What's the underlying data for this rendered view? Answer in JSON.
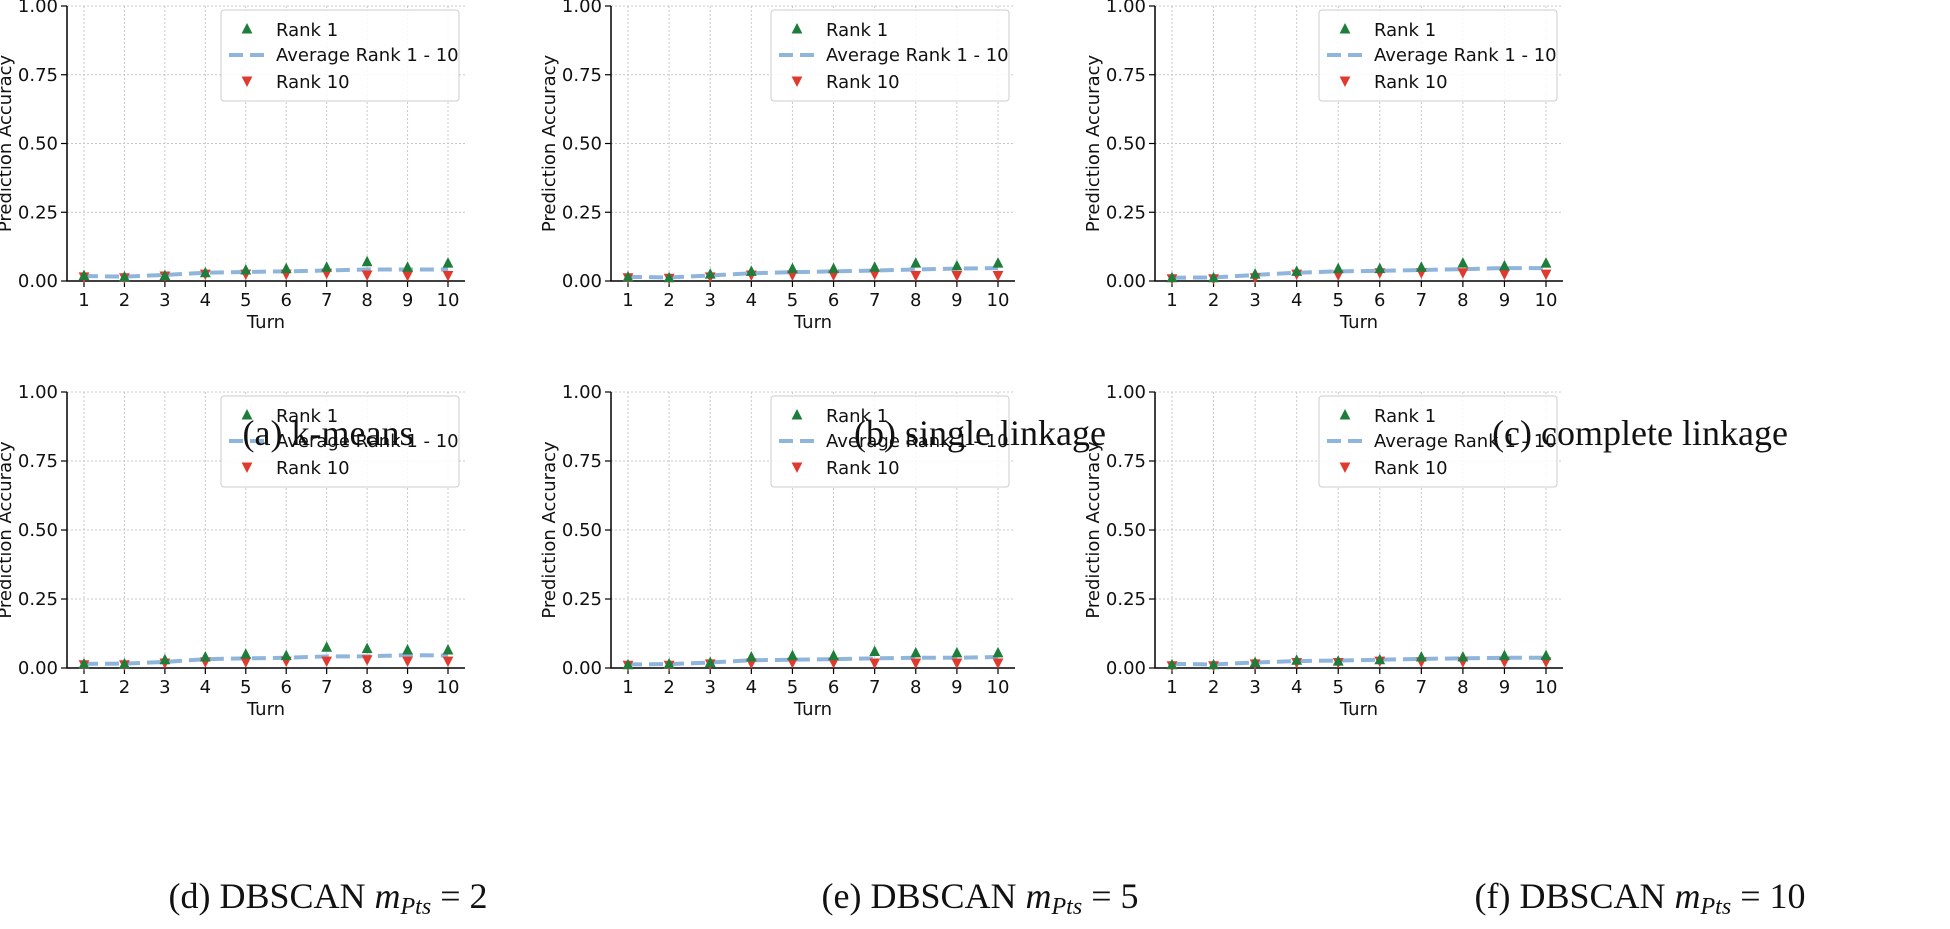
{
  "colors": {
    "rank1": "#1f7d3c",
    "average": "#8fb5dd",
    "rank10": "#e03a2f",
    "grid": "#c8c8c8",
    "axis": "#000000"
  },
  "legend": {
    "rank1": "Rank 1",
    "average": "Average Rank 1 - 10",
    "rank10": "Rank 10"
  },
  "captions": [
    {
      "label": "(a)",
      "text": "k-means"
    },
    {
      "label": "(b)",
      "text": "single linkage"
    },
    {
      "label": "(c)",
      "text": "complete linkage"
    },
    {
      "label": "(d)",
      "text": "DBSCAN",
      "math_var": "m",
      "math_sub": "Pts",
      "math_rel": "= 2"
    },
    {
      "label": "(e)",
      "text": "DBSCAN",
      "math_var": "m",
      "math_sub": "Pts",
      "math_rel": "= 5"
    },
    {
      "label": "(f)",
      "text": "DBSCAN",
      "math_var": "m",
      "math_sub": "Pts",
      "math_rel": "= 10"
    }
  ],
  "chart_data": [
    {
      "type": "line",
      "xlabel": "Turn",
      "ylabel": "Prediction Accuracy",
      "x": [
        1,
        2,
        3,
        4,
        5,
        6,
        7,
        8,
        9,
        10
      ],
      "ylim": [
        0,
        1.0
      ],
      "yticks": [
        "0.00",
        "0.25",
        "0.50",
        "0.75",
        "1.00"
      ],
      "grid": true,
      "legend_position": "top-right",
      "series": [
        {
          "name": "Rank 1",
          "marker": "triangle-up",
          "values": [
            0.02,
            0.015,
            0.02,
            0.03,
            0.04,
            0.045,
            0.05,
            0.07,
            0.05,
            0.065
          ]
        },
        {
          "name": "Average Rank 1 - 10",
          "style": "dashed",
          "values": [
            0.018,
            0.016,
            0.022,
            0.03,
            0.033,
            0.035,
            0.038,
            0.042,
            0.042,
            0.042
          ]
        },
        {
          "name": "Rank 10",
          "marker": "triangle-down",
          "values": [
            0.015,
            0.012,
            0.018,
            0.025,
            0.025,
            0.025,
            0.028,
            0.022,
            0.02,
            0.02
          ]
        }
      ]
    },
    {
      "type": "line",
      "xlabel": "Turn",
      "ylabel": "Prediction Accuracy",
      "x": [
        1,
        2,
        3,
        4,
        5,
        6,
        7,
        8,
        9,
        10
      ],
      "ylim": [
        0,
        1.0
      ],
      "yticks": [
        "0.00",
        "0.25",
        "0.50",
        "0.75",
        "1.00"
      ],
      "grid": true,
      "legend_position": "top-right",
      "series": [
        {
          "name": "Rank 1",
          "marker": "triangle-up",
          "values": [
            0.015,
            0.012,
            0.025,
            0.035,
            0.045,
            0.045,
            0.05,
            0.065,
            0.055,
            0.065
          ]
        },
        {
          "name": "Average Rank 1 - 10",
          "style": "dashed",
          "values": [
            0.015,
            0.013,
            0.02,
            0.028,
            0.032,
            0.035,
            0.038,
            0.042,
            0.045,
            0.047
          ]
        },
        {
          "name": "Rank 10",
          "marker": "triangle-down",
          "values": [
            0.012,
            0.01,
            0.015,
            0.022,
            0.022,
            0.022,
            0.025,
            0.02,
            0.02,
            0.02
          ]
        }
      ]
    },
    {
      "type": "line",
      "xlabel": "Turn",
      "ylabel": "Prediction Accuracy",
      "x": [
        1,
        2,
        3,
        4,
        5,
        6,
        7,
        8,
        9,
        10
      ],
      "ylim": [
        0,
        1.0
      ],
      "yticks": [
        "0.00",
        "0.25",
        "0.50",
        "0.75",
        "1.00"
      ],
      "grid": true,
      "legend_position": "top-right",
      "series": [
        {
          "name": "Rank 1",
          "marker": "triangle-up",
          "values": [
            0.012,
            0.012,
            0.025,
            0.035,
            0.045,
            0.045,
            0.05,
            0.065,
            0.055,
            0.065
          ]
        },
        {
          "name": "Average Rank 1 - 10",
          "style": "dashed",
          "values": [
            0.012,
            0.013,
            0.022,
            0.03,
            0.035,
            0.037,
            0.04,
            0.043,
            0.047,
            0.047
          ]
        },
        {
          "name": "Rank 10",
          "marker": "triangle-down",
          "values": [
            0.008,
            0.008,
            0.012,
            0.025,
            0.022,
            0.03,
            0.03,
            0.03,
            0.025,
            0.025
          ]
        }
      ]
    },
    {
      "type": "line",
      "xlabel": "Turn",
      "ylabel": "Prediction Accuracy",
      "x": [
        1,
        2,
        3,
        4,
        5,
        6,
        7,
        8,
        9,
        10
      ],
      "ylim": [
        0,
        1.0
      ],
      "yticks": [
        "0.00",
        "0.25",
        "0.50",
        "0.75",
        "1.00"
      ],
      "grid": true,
      "legend_position": "top-right",
      "series": [
        {
          "name": "Rank 1",
          "marker": "triangle-up",
          "values": [
            0.015,
            0.015,
            0.03,
            0.04,
            0.05,
            0.045,
            0.075,
            0.07,
            0.065,
            0.065
          ]
        },
        {
          "name": "Average Rank 1 - 10",
          "style": "dashed",
          "values": [
            0.015,
            0.016,
            0.022,
            0.032,
            0.035,
            0.037,
            0.042,
            0.042,
            0.047,
            0.045
          ]
        },
        {
          "name": "Rank 10",
          "marker": "triangle-down",
          "values": [
            0.012,
            0.012,
            0.018,
            0.022,
            0.022,
            0.025,
            0.025,
            0.03,
            0.025,
            0.025
          ]
        }
      ]
    },
    {
      "type": "line",
      "xlabel": "Turn",
      "ylabel": "Prediction Accuracy",
      "x": [
        1,
        2,
        3,
        4,
        5,
        6,
        7,
        8,
        9,
        10
      ],
      "ylim": [
        0,
        1.0
      ],
      "yticks": [
        "0.00",
        "0.25",
        "0.50",
        "0.75",
        "1.00"
      ],
      "grid": true,
      "legend_position": "top-right",
      "series": [
        {
          "name": "Rank 1",
          "marker": "triangle-up",
          "values": [
            0.012,
            0.015,
            0.02,
            0.04,
            0.045,
            0.045,
            0.06,
            0.055,
            0.055,
            0.055
          ]
        },
        {
          "name": "Average Rank 1 - 10",
          "style": "dashed",
          "values": [
            0.013,
            0.014,
            0.02,
            0.028,
            0.03,
            0.032,
            0.035,
            0.037,
            0.037,
            0.04
          ]
        },
        {
          "name": "Rank 10",
          "marker": "triangle-down",
          "values": [
            0.01,
            0.01,
            0.015,
            0.018,
            0.02,
            0.02,
            0.018,
            0.018,
            0.018,
            0.018
          ]
        }
      ]
    },
    {
      "type": "line",
      "xlabel": "Turn",
      "ylabel": "Prediction Accuracy",
      "x": [
        1,
        2,
        3,
        4,
        5,
        6,
        7,
        8,
        9,
        10
      ],
      "ylim": [
        0,
        1.0
      ],
      "yticks": [
        "0.00",
        "0.25",
        "0.50",
        "0.75",
        "1.00"
      ],
      "grid": true,
      "legend_position": "top-right",
      "series": [
        {
          "name": "Rank 1",
          "marker": "triangle-up",
          "values": [
            0.012,
            0.012,
            0.02,
            0.028,
            0.025,
            0.03,
            0.04,
            0.04,
            0.045,
            0.045
          ]
        },
        {
          "name": "Average Rank 1 - 10",
          "style": "dashed",
          "values": [
            0.015,
            0.013,
            0.02,
            0.025,
            0.027,
            0.03,
            0.033,
            0.035,
            0.037,
            0.037
          ]
        },
        {
          "name": "Rank 10",
          "marker": "triangle-down",
          "values": [
            0.008,
            0.008,
            0.015,
            0.02,
            0.02,
            0.025,
            0.022,
            0.022,
            0.022,
            0.022
          ]
        }
      ]
    }
  ]
}
